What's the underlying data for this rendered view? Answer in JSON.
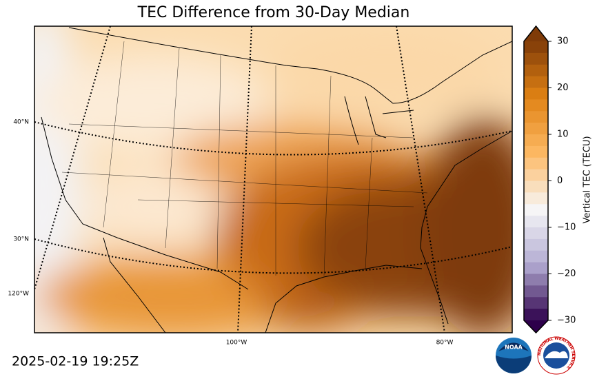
{
  "title": "TEC Difference from 30-Day Median",
  "timestamp": "2025-02-19 19:25Z",
  "map": {
    "lat_labels": [
      "40°N",
      "30°N"
    ],
    "lon_labels": [
      "120°W",
      "100°W",
      "80°W"
    ]
  },
  "colorbar": {
    "label": "Vertical TEC (TECU)",
    "lim": [
      -30,
      30
    ],
    "ticks": [
      30,
      20,
      10,
      0,
      {
        "value": -10,
        "label": "−10"
      },
      {
        "value": -20,
        "label": "−20"
      },
      {
        "value": -30,
        "label": "−30"
      }
    ],
    "colors": [
      "#2d004b",
      "#b2abd2",
      "#f7f7f7",
      "#fdb863",
      "#e08214",
      "#7f3b08"
    ]
  },
  "logos": {
    "noaa": "NOAA",
    "nws": "NATIONAL WEATHER SERVICE"
  }
}
